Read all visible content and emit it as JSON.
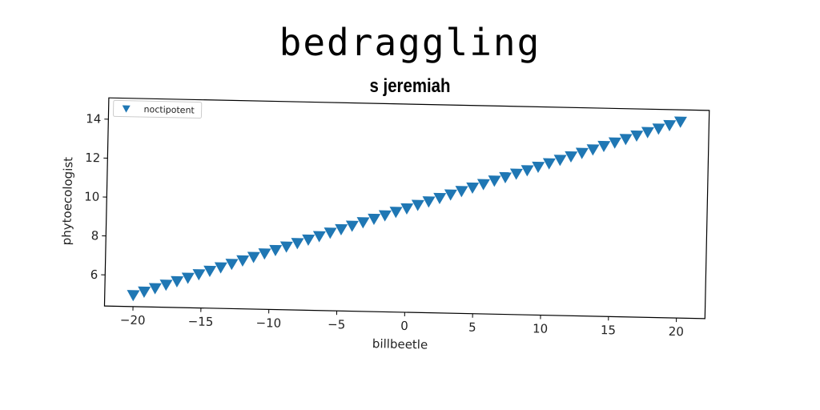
{
  "chart_data": {
    "type": "scatter",
    "title": "bedraggling",
    "subtitle": "s jeremiah",
    "xlabel": "billbeetle",
    "ylabel": "phytoecologist",
    "xlim": [
      -22.1,
      22.1
    ],
    "ylim": [
      4.4,
      15.1
    ],
    "xticks": [
      -20,
      -15,
      -10,
      -5,
      0,
      5,
      10,
      15,
      20
    ],
    "yticks": [
      6,
      8,
      10,
      12,
      14
    ],
    "marker": "triangle-down",
    "color": "#1f77b4",
    "grid": false,
    "legend_position": "top-left",
    "series": [
      {
        "name": "noctipotent",
        "x": [
          -20,
          -19.2,
          -18.4,
          -17.6,
          -16.8,
          -16,
          -15.2,
          -14.4,
          -13.6,
          -12.8,
          -12,
          -11.2,
          -10.4,
          -9.6,
          -8.8,
          -8,
          -7.2,
          -6.4,
          -5.6,
          -4.8,
          -4,
          -3.2,
          -2.4,
          -1.6,
          -0.8,
          0,
          0.8,
          1.6,
          2.4,
          3.2,
          4,
          4.8,
          5.6,
          6.4,
          7.2,
          8,
          8.8,
          9.6,
          10.4,
          11.2,
          12,
          12.8,
          13.6,
          14.4,
          15.2,
          16,
          16.8,
          17.6,
          18.4,
          19.2,
          20
        ],
        "y": [
          5.0,
          5.19,
          5.38,
          5.57,
          5.76,
          5.95,
          6.14,
          6.33,
          6.52,
          6.71,
          6.9,
          7.09,
          7.28,
          7.47,
          7.66,
          7.85,
          8.04,
          8.23,
          8.42,
          8.61,
          8.8,
          8.99,
          9.18,
          9.37,
          9.56,
          9.75,
          9.94,
          10.13,
          10.32,
          10.51,
          10.7,
          10.89,
          11.08,
          11.27,
          11.46,
          11.65,
          11.84,
          12.03,
          12.22,
          12.41,
          12.6,
          12.79,
          12.98,
          13.17,
          13.36,
          13.55,
          13.74,
          13.93,
          14.12,
          14.31,
          14.5
        ]
      }
    ]
  }
}
